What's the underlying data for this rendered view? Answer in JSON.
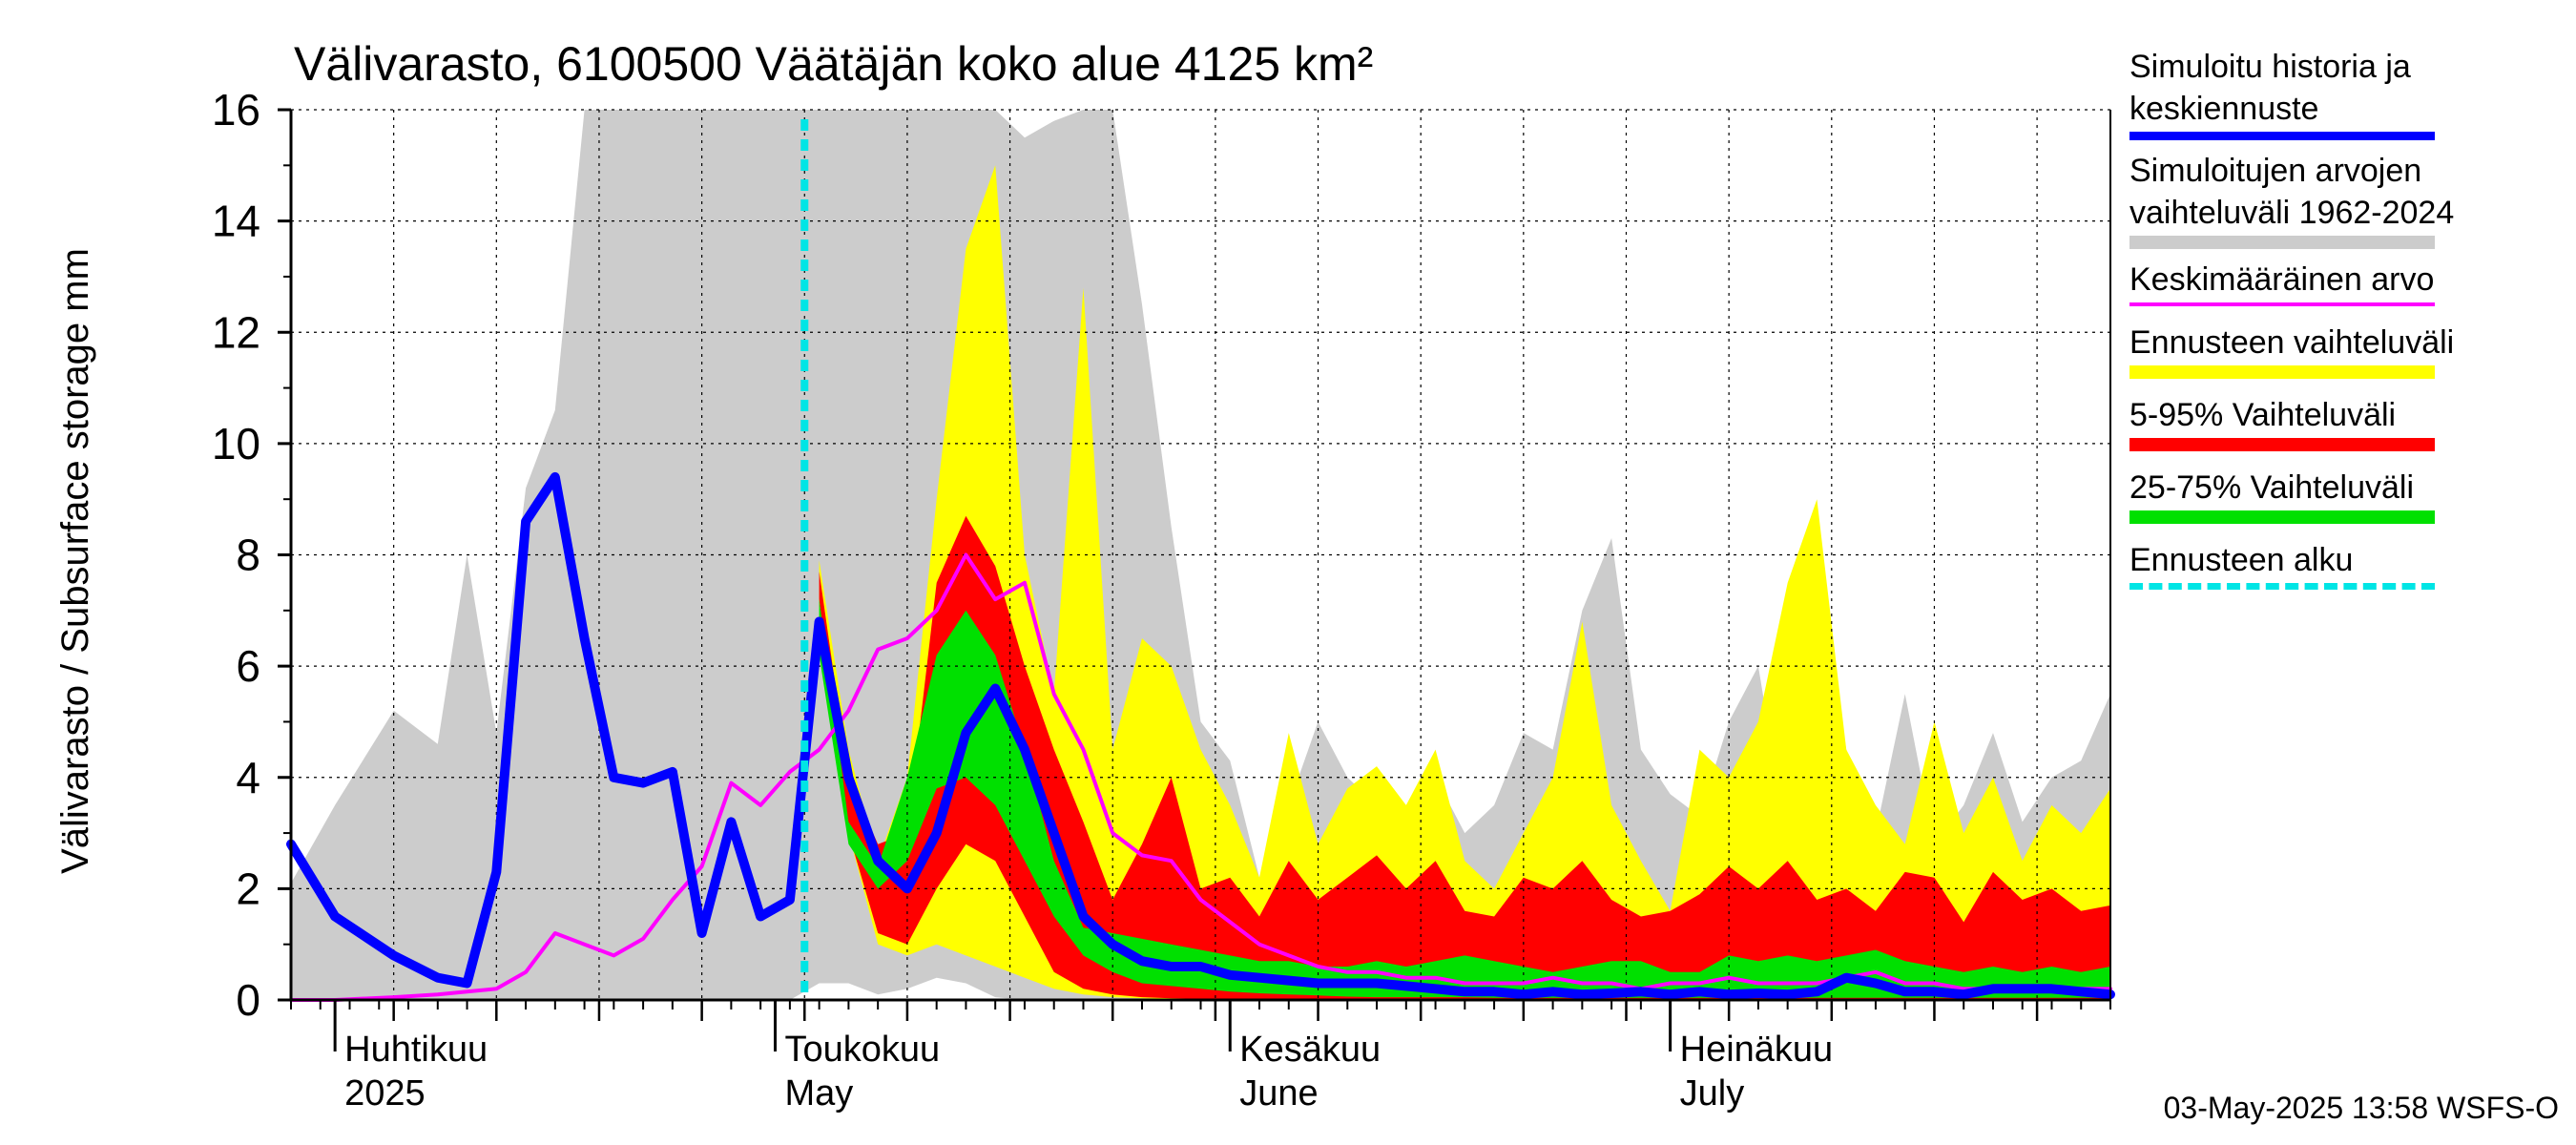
{
  "chart_data": {
    "type": "area",
    "title": "Välivarasto, 6100500 Väätäjän koko alue 4125 km²",
    "ylabel": "Välivarasto / Subsurface storage  mm",
    "ylim": [
      0,
      16
    ],
    "yticks": [
      0,
      2,
      4,
      6,
      8,
      10,
      12,
      14,
      16
    ],
    "xlim": [
      "2025-03-29",
      "2025-07-31"
    ],
    "month_labels": [
      {
        "date": "2025-04-01",
        "fi": "Huhtikuu",
        "en": "2025"
      },
      {
        "date": "2025-05-01",
        "fi": "Toukokuu",
        "en": "May"
      },
      {
        "date": "2025-06-01",
        "fi": "Kesäkuu",
        "en": "June"
      },
      {
        "date": "2025-07-01",
        "fi": "Heinäkuu",
        "en": "July"
      }
    ],
    "forecast_start": "2025-05-03",
    "grid": true,
    "x": [
      "2025-03-29",
      "2025-04-01",
      "2025-04-05",
      "2025-04-08",
      "2025-04-10",
      "2025-04-12",
      "2025-04-14",
      "2025-04-16",
      "2025-04-18",
      "2025-04-20",
      "2025-04-22",
      "2025-04-24",
      "2025-04-26",
      "2025-04-28",
      "2025-04-30",
      "2025-05-02",
      "2025-05-04",
      "2025-05-06",
      "2025-05-08",
      "2025-05-10",
      "2025-05-12",
      "2025-05-14",
      "2025-05-16",
      "2025-05-18",
      "2025-05-20",
      "2025-05-22",
      "2025-05-24",
      "2025-05-26",
      "2025-05-28",
      "2025-05-30",
      "2025-06-01",
      "2025-06-03",
      "2025-06-05",
      "2025-06-07",
      "2025-06-09",
      "2025-06-11",
      "2025-06-13",
      "2025-06-15",
      "2025-06-17",
      "2025-06-19",
      "2025-06-21",
      "2025-06-23",
      "2025-06-25",
      "2025-06-27",
      "2025-06-29",
      "2025-07-01",
      "2025-07-03",
      "2025-07-05",
      "2025-07-07",
      "2025-07-09",
      "2025-07-11",
      "2025-07-13",
      "2025-07-15",
      "2025-07-17",
      "2025-07-19",
      "2025-07-21",
      "2025-07-23",
      "2025-07-25",
      "2025-07-27",
      "2025-07-29",
      "2025-07-31"
    ],
    "series": [
      {
        "name": "Simuloitujen arvojen vaihteluväli 1962-2024",
        "color": "#cccccc",
        "role": "band",
        "low": [
          0,
          0,
          0,
          0,
          0,
          0,
          0,
          0,
          0,
          0,
          0,
          0,
          0,
          0,
          0,
          0,
          0.3,
          0.3,
          0.1,
          0.2,
          0.4,
          0.3,
          0.05,
          0,
          0,
          0,
          0,
          0,
          0,
          0,
          0,
          0,
          0,
          0,
          0,
          0,
          0,
          0,
          0,
          0,
          0,
          0,
          0,
          0,
          0,
          0,
          0,
          0,
          0,
          0,
          0,
          0,
          0,
          0,
          0,
          0,
          0,
          0,
          0,
          0,
          0
        ],
        "high": [
          2.1,
          3.5,
          5.2,
          4.6,
          8.0,
          4.8,
          9.2,
          10.6,
          16.0,
          16.0,
          16.0,
          16.0,
          16.0,
          16.0,
          16.0,
          16.0,
          16.0,
          16.0,
          16.0,
          16.0,
          16.0,
          16.0,
          16.0,
          15.5,
          15.8,
          16.0,
          16.0,
          12.5,
          8.5,
          5.0,
          4.3,
          2.2,
          3.5,
          5.0,
          4.0,
          3.5,
          3.5,
          4.0,
          3.0,
          3.5,
          4.8,
          4.5,
          7.0,
          8.3,
          4.5,
          3.7,
          3.3,
          5.0,
          6.0,
          2.8,
          7.8,
          4.5,
          3.0,
          5.5,
          2.8,
          3.5,
          4.8,
          3.2,
          4.0,
          4.3,
          5.5
        ]
      },
      {
        "name": "Ennusteen vaihteluväli",
        "color": "#ffff00",
        "role": "band",
        "low": [
          null,
          null,
          null,
          null,
          null,
          null,
          null,
          null,
          null,
          null,
          null,
          null,
          null,
          null,
          null,
          null,
          6.5,
          3.0,
          1.0,
          0.8,
          1.0,
          0.8,
          0.6,
          0.4,
          0.2,
          0.1,
          0.05,
          0.03,
          0.02,
          0.02,
          0.01,
          0.01,
          0.01,
          0.01,
          0.01,
          0.01,
          0.01,
          0.01,
          0.01,
          0.01,
          0.01,
          0.01,
          0.01,
          0.01,
          0.01,
          0.01,
          0.01,
          0.01,
          0.01,
          0.01,
          0.01,
          0.01,
          0.01,
          0.01,
          0.01,
          0.01,
          0.01,
          0.01,
          0.01,
          0.01,
          0.01
        ],
        "high": [
          null,
          null,
          null,
          null,
          null,
          null,
          null,
          null,
          null,
          null,
          null,
          null,
          null,
          null,
          null,
          null,
          7.9,
          4.5,
          2.5,
          4.0,
          9.0,
          13.5,
          15.0,
          8.0,
          5.5,
          12.8,
          4.5,
          6.5,
          6.0,
          4.5,
          3.5,
          2.2,
          4.8,
          2.8,
          3.8,
          4.2,
          3.5,
          4.5,
          2.5,
          2.0,
          3.0,
          4.0,
          6.8,
          3.5,
          2.5,
          1.6,
          4.5,
          4.0,
          5.0,
          7.5,
          9.0,
          4.5,
          3.5,
          2.8,
          5.0,
          3.0,
          4.0,
          2.5,
          3.5,
          3.0,
          3.8
        ]
      },
      {
        "name": "5-95% Vaihteluväli",
        "color": "#ff0000",
        "role": "band",
        "low": [
          null,
          null,
          null,
          null,
          null,
          null,
          null,
          null,
          null,
          null,
          null,
          null,
          null,
          null,
          null,
          null,
          7.2,
          3.0,
          1.2,
          1.0,
          2.0,
          2.8,
          2.5,
          1.5,
          0.5,
          0.2,
          0.1,
          0.05,
          0.03,
          0.02,
          0.02,
          0.01,
          0.01,
          0.01,
          0.01,
          0.01,
          0.01,
          0.01,
          0.01,
          0.01,
          0.01,
          0.01,
          0.01,
          0.01,
          0.01,
          0.01,
          0.01,
          0.01,
          0.01,
          0.01,
          0.01,
          0.01,
          0.01,
          0.01,
          0.01,
          0.01,
          0.01,
          0.01,
          0.01,
          0.01,
          0.01
        ],
        "high": [
          null,
          null,
          null,
          null,
          null,
          null,
          null,
          null,
          null,
          null,
          null,
          null,
          null,
          null,
          null,
          null,
          7.7,
          4.0,
          2.8,
          3.0,
          7.5,
          8.7,
          7.8,
          6.0,
          4.5,
          3.2,
          1.8,
          2.8,
          4.0,
          2.0,
          2.2,
          1.5,
          2.5,
          1.8,
          2.2,
          2.6,
          2.0,
          2.5,
          1.6,
          1.5,
          2.2,
          2.0,
          2.5,
          1.8,
          1.5,
          1.6,
          1.9,
          2.4,
          2.0,
          2.5,
          1.8,
          2.0,
          1.6,
          2.3,
          2.2,
          1.4,
          2.3,
          1.8,
          2.0,
          1.6,
          1.7
        ]
      },
      {
        "name": "25-75% Vaihteluväli",
        "color": "#00e000",
        "role": "band",
        "low": [
          null,
          null,
          null,
          null,
          null,
          null,
          null,
          null,
          null,
          null,
          null,
          null,
          null,
          null,
          null,
          null,
          6.2,
          2.8,
          2.0,
          2.5,
          3.8,
          4.0,
          3.5,
          2.5,
          1.5,
          0.8,
          0.5,
          0.3,
          0.25,
          0.2,
          0.15,
          0.12,
          0.1,
          0.08,
          0.06,
          0.05,
          0.05,
          0.05,
          0.05,
          0.04,
          0.04,
          0.04,
          0.04,
          0.04,
          0.04,
          0.04,
          0.04,
          0.04,
          0.04,
          0.04,
          0.04,
          0.04,
          0.04,
          0.04,
          0.04,
          0.04,
          0.04,
          0.04,
          0.04,
          0.04,
          0.04
        ],
        "high": [
          null,
          null,
          null,
          null,
          null,
          null,
          null,
          null,
          null,
          null,
          null,
          null,
          null,
          null,
          null,
          null,
          7.2,
          3.2,
          2.4,
          4.0,
          6.2,
          7.0,
          6.2,
          4.5,
          2.5,
          1.3,
          1.2,
          1.1,
          1.0,
          0.9,
          0.8,
          0.7,
          0.7,
          0.6,
          0.6,
          0.7,
          0.6,
          0.7,
          0.8,
          0.7,
          0.6,
          0.5,
          0.6,
          0.7,
          0.7,
          0.5,
          0.5,
          0.8,
          0.7,
          0.8,
          0.7,
          0.8,
          0.9,
          0.7,
          0.6,
          0.5,
          0.6,
          0.5,
          0.6,
          0.5,
          0.6
        ]
      },
      {
        "name": "Keskimääräinen arvo",
        "color": "#ff00ff",
        "role": "line",
        "values": [
          0,
          0,
          0.05,
          0.1,
          0.15,
          0.2,
          0.5,
          1.2,
          1.0,
          0.8,
          1.1,
          1.8,
          2.4,
          3.9,
          3.5,
          4.1,
          4.5,
          5.2,
          6.3,
          6.5,
          7.0,
          8.0,
          7.2,
          7.5,
          5.5,
          4.5,
          3.0,
          2.6,
          2.5,
          1.8,
          1.4,
          1.0,
          0.8,
          0.6,
          0.5,
          0.5,
          0.4,
          0.4,
          0.3,
          0.3,
          0.3,
          0.4,
          0.3,
          0.3,
          0.2,
          0.3,
          0.3,
          0.4,
          0.3,
          0.3,
          0.3,
          0.4,
          0.5,
          0.3,
          0.3,
          0.2,
          0.2,
          0.2,
          0.2,
          0.2,
          0.2
        ]
      },
      {
        "name": "Simuloitu historia ja keskiennuste",
        "color": "#0000ff",
        "role": "line",
        "values": [
          2.8,
          1.5,
          0.8,
          0.4,
          0.3,
          2.3,
          8.6,
          9.4,
          6.5,
          4.0,
          3.9,
          4.1,
          1.2,
          3.2,
          1.5,
          1.8,
          6.8,
          4.0,
          2.5,
          2.0,
          3.0,
          4.8,
          5.6,
          4.5,
          3.0,
          1.5,
          1.0,
          0.7,
          0.6,
          0.6,
          0.45,
          0.4,
          0.35,
          0.3,
          0.3,
          0.3,
          0.25,
          0.2,
          0.15,
          0.15,
          0.1,
          0.15,
          0.1,
          0.12,
          0.15,
          0.1,
          0.15,
          0.1,
          0.12,
          0.1,
          0.15,
          0.4,
          0.3,
          0.15,
          0.15,
          0.1,
          0.2,
          0.2,
          0.2,
          0.15,
          0.1
        ]
      }
    ]
  },
  "legend": {
    "items": [
      {
        "label": "Simuloitu historia ja\nkeskiennuste",
        "color": "#0000ff",
        "style": "solid",
        "thickness": 9
      },
      {
        "label": "Simuloitujen arvojen\nvaihteluväli 1962-2024",
        "color": "#cccccc",
        "style": "solid",
        "thickness": 14
      },
      {
        "label": "Keskimääräinen arvo",
        "color": "#ff00ff",
        "style": "solid",
        "thickness": 4
      },
      {
        "label": "Ennusteen vaihteluväli",
        "color": "#ffff00",
        "style": "solid",
        "thickness": 14
      },
      {
        "label": "5-95% Vaihteluväli",
        "color": "#ff0000",
        "style": "solid",
        "thickness": 14
      },
      {
        "label": "25-75% Vaihteluväli",
        "color": "#00e000",
        "style": "solid",
        "thickness": 14
      },
      {
        "label": "Ennusteen alku",
        "color": "#00e5e5",
        "style": "dashed",
        "thickness": 7
      }
    ]
  },
  "footer": {
    "timestamp": "03-May-2025 13:58 WSFS-O"
  }
}
